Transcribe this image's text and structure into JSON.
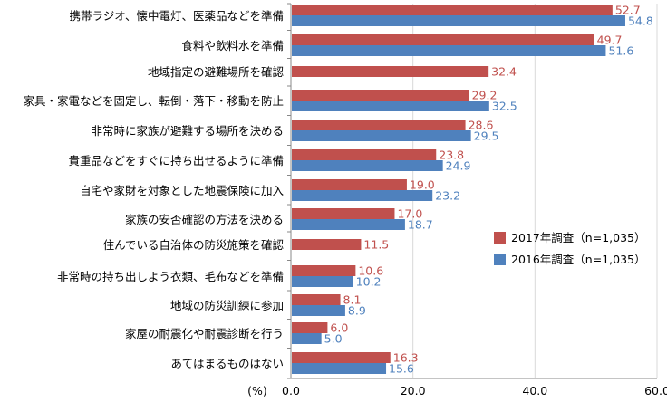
{
  "chart_data": {
    "type": "bar",
    "orientation": "horizontal",
    "categories": [
      "携帯ラジオ、懐中電灯、医薬品などを準備",
      "食料や飲料水を準備",
      "地域指定の避難場所を確認",
      "家具・家電などを固定し、転倒・落下・移動を防止",
      "非常時に家族が避難する場所を決める",
      "貴重品などをすぐに持ち出せるように準備",
      "自宅や家財を対象とした地震保険に加入",
      "家族の安否確認の方法を決める",
      "住んでいる自治体の防災施策を確認",
      "非常時の持ち出しよう衣類、毛布などを準備",
      "地域の防災訓練に参加",
      "家屋の耐震化や耐震診断を行う",
      "あてはまるものはない"
    ],
    "series": [
      {
        "name": "2017年調査（n=1,035）",
        "color": "#c0504d",
        "values": [
          52.7,
          49.7,
          32.4,
          29.2,
          28.6,
          23.8,
          19.0,
          17.0,
          11.5,
          10.6,
          8.1,
          6.0,
          16.3
        ],
        "labels": [
          "52.7",
          "49.7",
          "32.4",
          "29.2",
          "28.6",
          "23.8",
          "19.0",
          "17.0",
          "11.5",
          "10.6",
          "8.1",
          "6.0",
          "16.3"
        ]
      },
      {
        "name": "2016年調査（n=1,035）",
        "color": "#4f81bd",
        "values": [
          54.8,
          51.6,
          null,
          32.5,
          29.5,
          24.9,
          23.2,
          18.7,
          null,
          10.2,
          8.9,
          5.0,
          15.6
        ],
        "labels": [
          "54.8",
          "51.6",
          "",
          "32.5",
          "29.5",
          "24.9",
          "23.2",
          "18.7",
          "",
          "10.2",
          "8.9",
          "5.0",
          "15.6"
        ]
      }
    ],
    "xlim": [
      0,
      60
    ],
    "xticks": [
      "0.0",
      "20.0",
      "40.0",
      "60.0"
    ],
    "xlabel": "(%)",
    "grid": true,
    "legend_position": "right"
  }
}
